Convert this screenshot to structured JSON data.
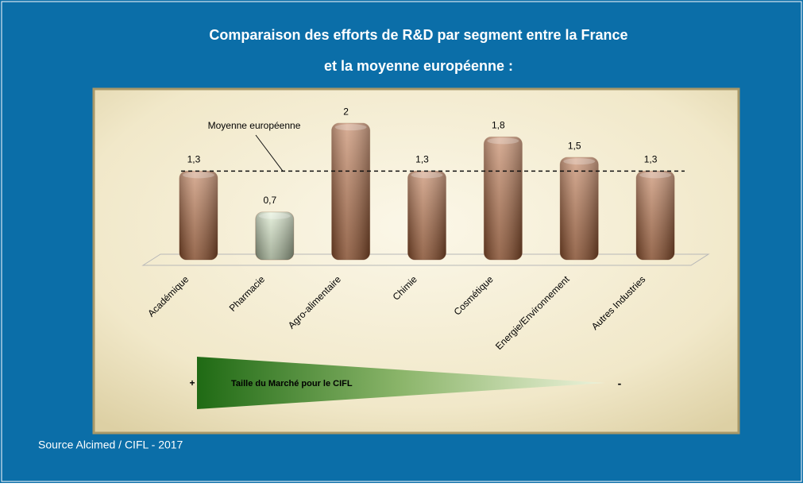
{
  "chart_data": {
    "type": "bar",
    "title": [
      "Comparaison des efforts de R&D par segment entre la France",
      "et la moyenne européenne :"
    ],
    "categories": [
      "Académique",
      "Pharmacie",
      "Agro-alimentaire",
      "Chimie",
      "Cosmétique",
      "Energie/Environnement",
      "Autres Industries"
    ],
    "values": [
      1.3,
      0.7,
      2,
      1.3,
      1.8,
      1.5,
      1.3
    ],
    "value_labels": [
      "1,3",
      "0,7",
      "2",
      "1,3",
      "1,8",
      "1,5",
      "1,3"
    ],
    "colors": [
      "#b8683a",
      "#d6e9c4",
      "#b8683a",
      "#b8683a",
      "#b8683a",
      "#b8683a",
      "#b8683a"
    ],
    "ylim": [
      0,
      2.2
    ],
    "reference_line": {
      "label": "Moyenne européenne",
      "value": 1.3
    },
    "market_size": {
      "label": "Taille du Marché pour le CIFL",
      "plus": "+",
      "minus": "-"
    },
    "source": "Source Alcimed / CIFL - 2017"
  }
}
